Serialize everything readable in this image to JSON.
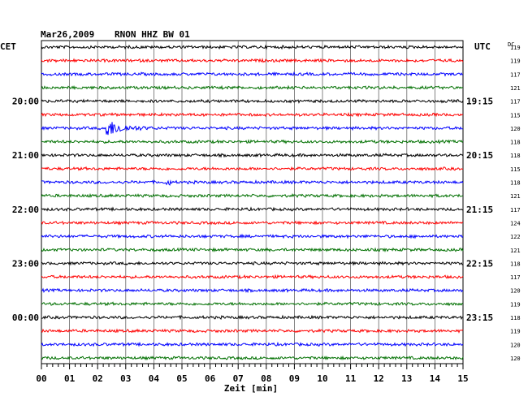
{
  "header": {
    "date": "Mar26,2009",
    "station": "RNON HHZ BW 01",
    "left_tz": "CET",
    "right_tz": "UTC",
    "dc_label": "DC"
  },
  "colors": {
    "trace_cycle": [
      "#000000",
      "#ff0000",
      "#0000ff",
      "#007000"
    ],
    "grid": "#000000",
    "background": "#ffffff"
  },
  "chart_data": {
    "type": "line",
    "title": "Mar26,2009   RNON HHZ BW 01",
    "xlabel": "Zeit [min]",
    "xlim": [
      0,
      15
    ],
    "x_ticks": [
      "00",
      "01",
      "02",
      "03",
      "04",
      "05",
      "06",
      "07",
      "08",
      "09",
      "10",
      "11",
      "12",
      "13",
      "14",
      "15"
    ],
    "row_count": 24,
    "left_time_labels": [
      {
        "row": 4,
        "label": "20:00"
      },
      {
        "row": 8,
        "label": "21:00"
      },
      {
        "row": 12,
        "label": "22:00"
      },
      {
        "row": 16,
        "label": "23:00"
      },
      {
        "row": 20,
        "label": "00:00"
      }
    ],
    "right_time_labels": [
      {
        "row": 4,
        "label": "19:15"
      },
      {
        "row": 8,
        "label": "20:15"
      },
      {
        "row": 12,
        "label": "21:15"
      },
      {
        "row": 16,
        "label": "22:15"
      },
      {
        "row": 20,
        "label": "23:15"
      }
    ],
    "dc_offsets": [
      119,
      119,
      117,
      121,
      117,
      115,
      120,
      118,
      118,
      115,
      118,
      121,
      117,
      124,
      122,
      121,
      118,
      117,
      120,
      119,
      118,
      119,
      120,
      120
    ],
    "events": [
      {
        "row": 6,
        "start_min": 2.25,
        "amplitude": "large",
        "decay_min": 1.5
      },
      {
        "row": 10,
        "start_min": 4.4,
        "amplitude": "small",
        "decay_min": 0.2
      }
    ],
    "grid": true
  }
}
